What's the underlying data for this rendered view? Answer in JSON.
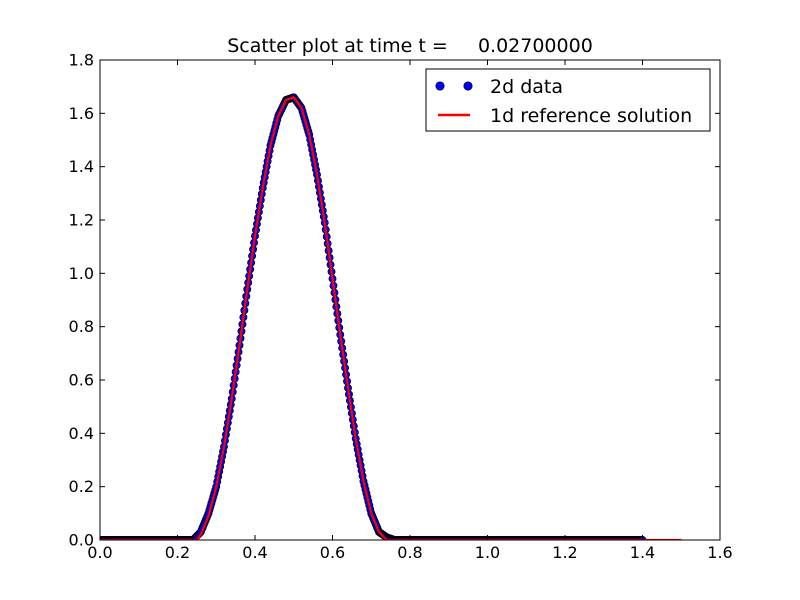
{
  "chart_data": {
    "type": "scatter",
    "title": "Scatter plot at time t =     0.02700000",
    "xlabel": "",
    "ylabel": "",
    "xlim": [
      0.0,
      1.6
    ],
    "ylim": [
      0.0,
      1.8
    ],
    "xticks": [
      "0.0",
      "0.2",
      "0.4",
      "0.6",
      "0.8",
      "1.0",
      "1.2",
      "1.4",
      "1.6"
    ],
    "yticks": [
      "0.0",
      "0.2",
      "0.4",
      "0.6",
      "0.8",
      "1.0",
      "1.2",
      "1.4",
      "1.6",
      "1.8"
    ],
    "grid": false,
    "legend_position": "top-right",
    "series": [
      {
        "name": "2d data",
        "kind": "scatter",
        "color": "#0000ff",
        "x": [
          0.0,
          0.05,
          0.1,
          0.15,
          0.2,
          0.24,
          0.26,
          0.28,
          0.3,
          0.32,
          0.34,
          0.36,
          0.38,
          0.4,
          0.42,
          0.44,
          0.46,
          0.48,
          0.5,
          0.52,
          0.54,
          0.56,
          0.58,
          0.6,
          0.62,
          0.64,
          0.66,
          0.68,
          0.7,
          0.72,
          0.74,
          0.76,
          0.8,
          0.9,
          1.0,
          1.1,
          1.2,
          1.3,
          1.4
        ],
        "y": [
          0.0,
          0.0,
          0.0,
          0.0,
          0.0,
          0.0,
          0.03,
          0.1,
          0.2,
          0.35,
          0.53,
          0.73,
          0.94,
          1.14,
          1.32,
          1.48,
          1.59,
          1.65,
          1.66,
          1.62,
          1.52,
          1.37,
          1.19,
          0.98,
          0.77,
          0.57,
          0.38,
          0.22,
          0.1,
          0.03,
          0.01,
          0.0,
          0.0,
          0.0,
          0.0,
          0.0,
          0.0,
          0.0,
          0.0
        ]
      },
      {
        "name": "1d reference solution",
        "kind": "line",
        "color": "#ff0000",
        "x": [
          0.0,
          0.1,
          0.2,
          0.25,
          0.26,
          0.28,
          0.3,
          0.32,
          0.34,
          0.36,
          0.38,
          0.4,
          0.42,
          0.44,
          0.46,
          0.48,
          0.5,
          0.52,
          0.54,
          0.56,
          0.58,
          0.6,
          0.62,
          0.64,
          0.66,
          0.68,
          0.7,
          0.72,
          0.74,
          0.76,
          0.8,
          1.0,
          1.2,
          1.4,
          1.5
        ],
        "y": [
          0.0,
          0.0,
          0.0,
          0.0,
          0.02,
          0.09,
          0.2,
          0.35,
          0.53,
          0.73,
          0.94,
          1.14,
          1.32,
          1.48,
          1.59,
          1.65,
          1.66,
          1.62,
          1.52,
          1.37,
          1.19,
          0.98,
          0.77,
          0.57,
          0.38,
          0.22,
          0.1,
          0.03,
          0.0,
          0.0,
          0.0,
          0.0,
          0.0,
          0.0,
          0.0
        ]
      }
    ]
  }
}
